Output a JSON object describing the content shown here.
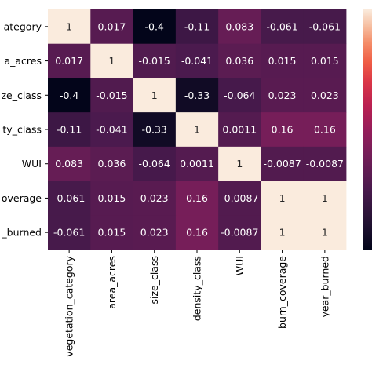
{
  "chart_data": {
    "type": "heatmap",
    "rows": [
      "vegetation_category",
      "area_acres",
      "size_class",
      "density_class",
      "WUI",
      "burn_coverage",
      "year_burned"
    ],
    "row_tick_labels": [
      "ategory",
      "a_acres",
      "ze_class",
      "ty_class",
      "WUI",
      "overage",
      "_burned"
    ],
    "columns": [
      "vegetation_category",
      "area_acres",
      "size_class",
      "density_class",
      "WUI",
      "burn_coverage",
      "year_burned"
    ],
    "values": [
      [
        1,
        0.017,
        -0.4,
        -0.11,
        0.083,
        -0.061,
        -0.061
      ],
      [
        0.017,
        1,
        -0.015,
        -0.041,
        0.036,
        0.015,
        0.015
      ],
      [
        -0.4,
        -0.015,
        1,
        -0.33,
        -0.064,
        0.023,
        0.023
      ],
      [
        -0.11,
        -0.041,
        -0.33,
        1,
        0.0011,
        0.16,
        0.16
      ],
      [
        0.083,
        0.036,
        -0.064,
        0.0011,
        1,
        -0.0087,
        -0.0087
      ],
      [
        -0.061,
        0.015,
        0.023,
        0.16,
        -0.0087,
        1,
        1
      ],
      [
        -0.061,
        0.015,
        0.023,
        0.16,
        -0.0087,
        1,
        1
      ]
    ],
    "cell_labels": [
      [
        "1",
        "0.017",
        "-0.4",
        "-0.11",
        "0.083",
        "-0.061",
        "-0.061"
      ],
      [
        "0.017",
        "1",
        "-0.015",
        "-0.041",
        "0.036",
        "0.015",
        "0.015"
      ],
      [
        "-0.4",
        "-0.015",
        "1",
        "-0.33",
        "-0.064",
        "0.023",
        "0.023"
      ],
      [
        "-0.11",
        "-0.041",
        "-0.33",
        "1",
        "0.0011",
        "0.16",
        "0.16"
      ],
      [
        "0.083",
        "0.036",
        "-0.064",
        "0.0011",
        "1",
        "-0.0087",
        "-0.0087"
      ],
      [
        "-0.061",
        "0.015",
        "0.023",
        "0.16",
        "-0.0087",
        "1",
        "1"
      ],
      [
        "-0.061",
        "0.015",
        "0.023",
        "0.16",
        "-0.0087",
        "1",
        "1"
      ]
    ],
    "vmin": -0.4,
    "vmax": 1,
    "colormap": "rocket",
    "annotated": true,
    "colorbar": "right"
  }
}
